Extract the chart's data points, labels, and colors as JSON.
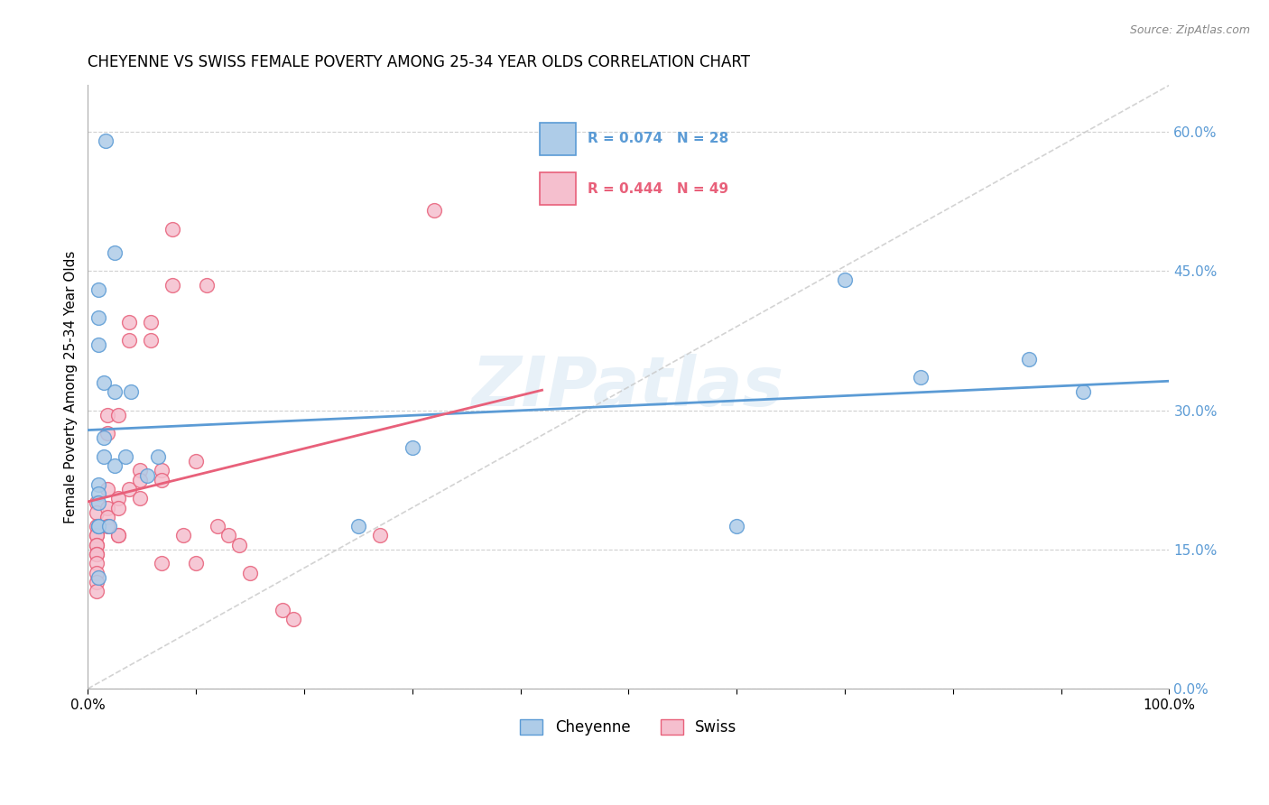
{
  "title": "CHEYENNE VS SWISS FEMALE POVERTY AMONG 25-34 YEAR OLDS CORRELATION CHART",
  "source": "Source: ZipAtlas.com",
  "ylabel": "Female Poverty Among 25-34 Year Olds",
  "legend_label_cheyenne": "Cheyenne",
  "legend_label_swiss": "Swiss",
  "R_cheyenne": 0.074,
  "N_cheyenne": 28,
  "R_swiss": 0.444,
  "N_swiss": 49,
  "cheyenne_color": "#aecce8",
  "swiss_color": "#f5bfce",
  "cheyenne_line_color": "#5b9bd5",
  "swiss_line_color": "#e8607a",
  "diagonal_color": "#c8c8c8",
  "watermark": "ZIPatlas",
  "xlim": [
    0.0,
    1.0
  ],
  "ylim": [
    0.0,
    0.65
  ],
  "xticks": [
    0.0,
    0.1,
    0.2,
    0.3,
    0.4,
    0.5,
    0.6,
    0.7,
    0.8,
    0.9,
    1.0
  ],
  "yticks": [
    0.0,
    0.15,
    0.3,
    0.45,
    0.6
  ],
  "ytick_labels": [
    "0.0%",
    "15.0%",
    "30.0%",
    "45.0%",
    "60.0%"
  ],
  "xtick_labels": [
    "0.0%",
    "",
    "",
    "",
    "",
    "",
    "",
    "",
    "",
    "",
    "100.0%"
  ],
  "cheyenne_x": [
    0.016,
    0.025,
    0.01,
    0.01,
    0.01,
    0.015,
    0.025,
    0.04,
    0.015,
    0.015,
    0.025,
    0.035,
    0.065,
    0.055,
    0.01,
    0.01,
    0.01,
    0.01,
    0.01,
    0.01,
    0.25,
    0.3,
    0.6,
    0.7,
    0.77,
    0.87,
    0.92,
    0.02
  ],
  "cheyenne_y": [
    0.59,
    0.47,
    0.43,
    0.4,
    0.37,
    0.33,
    0.32,
    0.32,
    0.27,
    0.25,
    0.24,
    0.25,
    0.25,
    0.23,
    0.22,
    0.21,
    0.2,
    0.175,
    0.175,
    0.12,
    0.175,
    0.26,
    0.175,
    0.44,
    0.335,
    0.355,
    0.32,
    0.175
  ],
  "swiss_x": [
    0.008,
    0.008,
    0.008,
    0.008,
    0.008,
    0.008,
    0.008,
    0.008,
    0.008,
    0.008,
    0.008,
    0.008,
    0.008,
    0.018,
    0.018,
    0.018,
    0.018,
    0.018,
    0.018,
    0.028,
    0.028,
    0.028,
    0.028,
    0.028,
    0.038,
    0.038,
    0.038,
    0.048,
    0.048,
    0.048,
    0.058,
    0.058,
    0.068,
    0.068,
    0.068,
    0.078,
    0.078,
    0.088,
    0.1,
    0.1,
    0.11,
    0.12,
    0.13,
    0.14,
    0.15,
    0.18,
    0.19,
    0.27,
    0.32
  ],
  "swiss_y": [
    0.2,
    0.19,
    0.175,
    0.165,
    0.165,
    0.155,
    0.155,
    0.145,
    0.145,
    0.135,
    0.125,
    0.115,
    0.105,
    0.295,
    0.275,
    0.215,
    0.195,
    0.185,
    0.175,
    0.295,
    0.205,
    0.195,
    0.165,
    0.165,
    0.395,
    0.375,
    0.215,
    0.235,
    0.225,
    0.205,
    0.395,
    0.375,
    0.235,
    0.225,
    0.135,
    0.495,
    0.435,
    0.165,
    0.245,
    0.135,
    0.435,
    0.175,
    0.165,
    0.155,
    0.125,
    0.085,
    0.075,
    0.165,
    0.515
  ]
}
